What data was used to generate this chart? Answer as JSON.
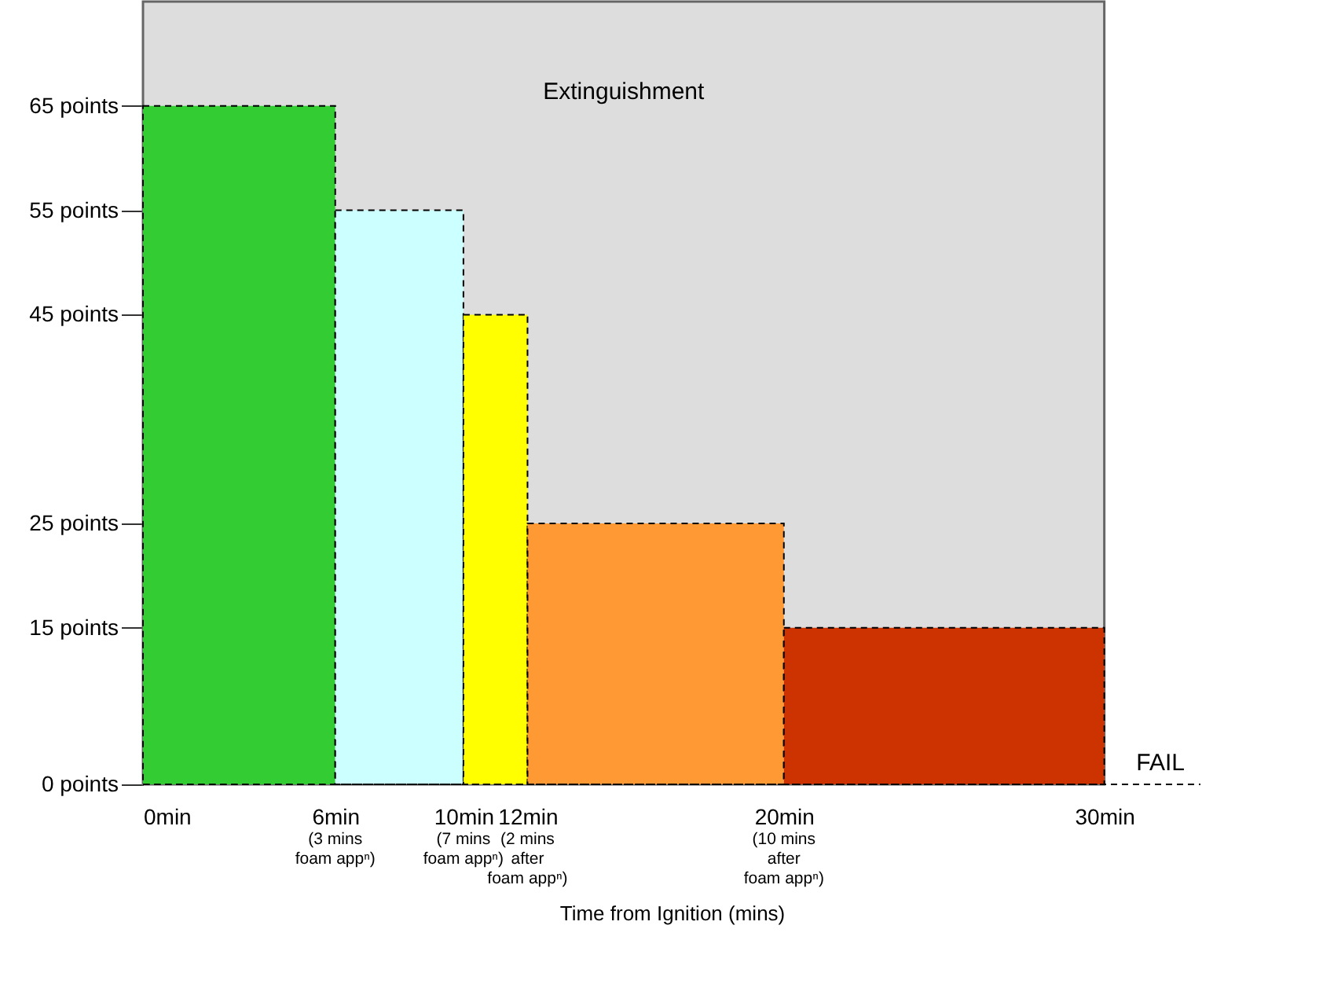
{
  "chart_data": {
    "type": "histogram",
    "bins": [
      0,
      6,
      10,
      12,
      20,
      30
    ],
    "values": [
      65,
      55,
      45,
      25,
      15
    ],
    "colors": [
      "#33cc33",
      "#ccffff",
      "#ffff00",
      "#ff9933",
      "#cc3300"
    ],
    "xlabel": "Time from Ignition (mins)",
    "xlim": [
      0,
      33
    ],
    "xticks": [
      {
        "value": 0,
        "label": "0min"
      },
      {
        "value": 6,
        "label": "6min"
      },
      {
        "value": 10,
        "label": "10min"
      },
      {
        "value": 12,
        "label": "12min"
      },
      {
        "value": 20,
        "label": "20min"
      },
      {
        "value": 30,
        "label": "30min"
      }
    ],
    "ylim": [
      0,
      75
    ],
    "yticks": [
      {
        "value": 0,
        "label": "0 points"
      },
      {
        "value": 15,
        "label": "15 points"
      },
      {
        "value": 25,
        "label": "25 points"
      },
      {
        "value": 45,
        "label": "45 points"
      },
      {
        "value": 55,
        "label": "55 points"
      },
      {
        "value": 65,
        "label": "65 points"
      }
    ],
    "bands": [
      {
        "axis": "x",
        "from": 0,
        "to": 30,
        "label": "Extinguishment",
        "color": "#dddddd"
      }
    ],
    "ref_lines": [
      {
        "axis": "y",
        "value": 0,
        "label": "FAIL",
        "line_style": "dashed"
      }
    ],
    "annotations": [
      "(3 mins\nfoam appⁿ)",
      "(7 mins\nfoam appⁿ)",
      "(2 mins\nafter\nfoam appⁿ)",
      "(10 mins\nafter\nfoam appⁿ)"
    ],
    "grid": false
  }
}
